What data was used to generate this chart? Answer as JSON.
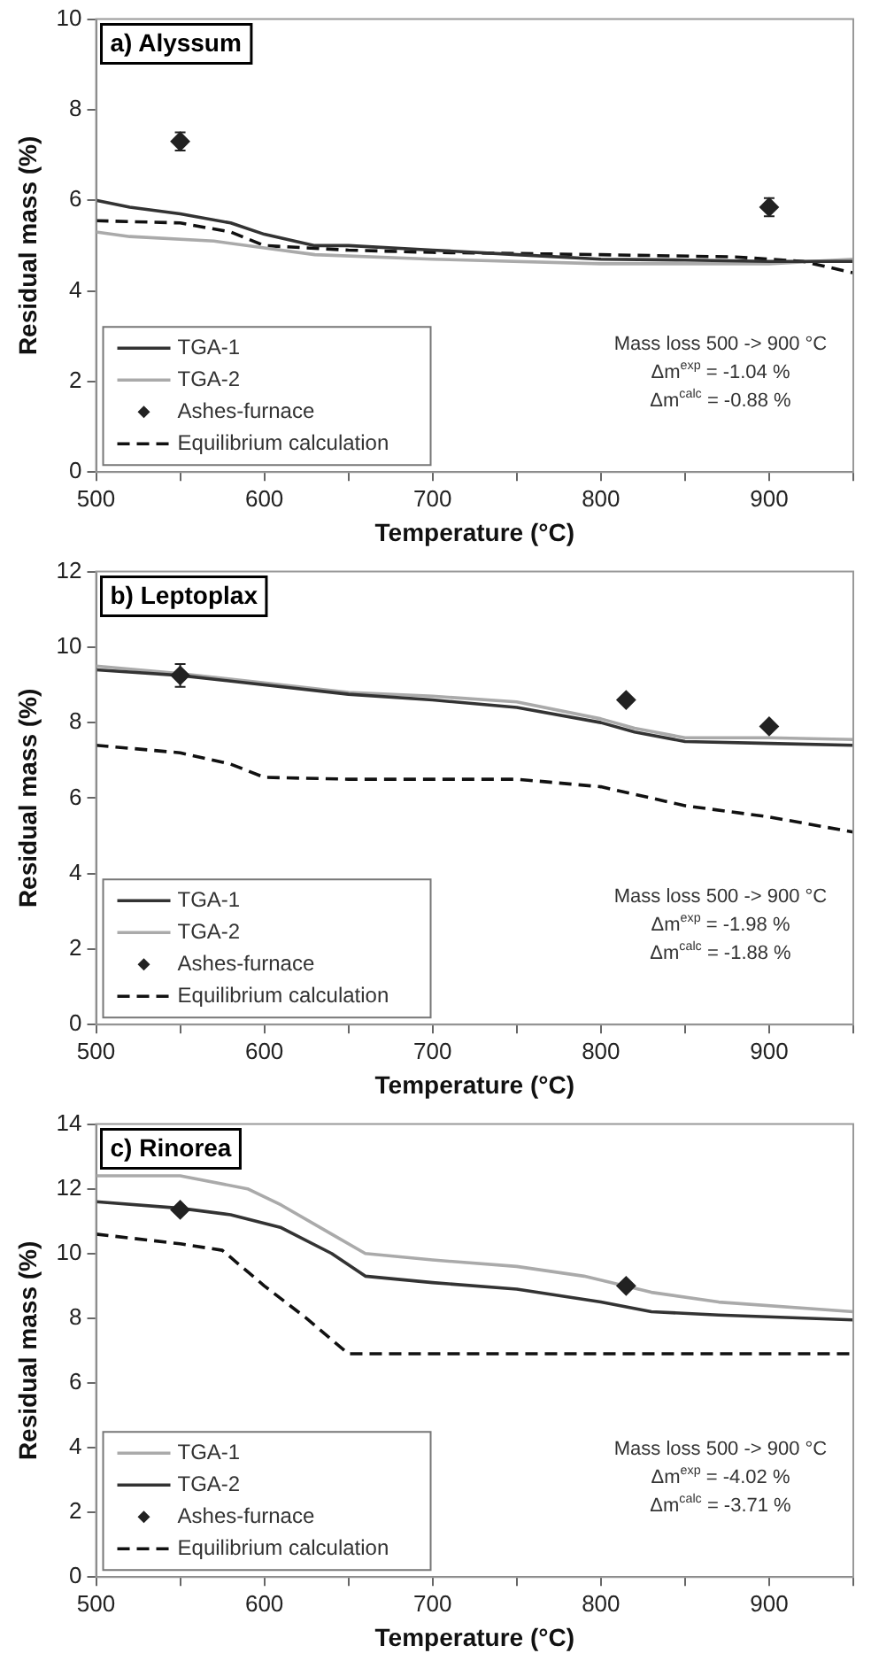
{
  "chart_data": [
    {
      "type": "line",
      "title": "a) Alyssum",
      "xlabel": "Temperature (°C)",
      "ylabel": "Residual mass (%)",
      "xlim": [
        500,
        950
      ],
      "xticks": [
        500,
        {
          "value": 550,
          "label": null
        },
        600,
        {
          "value": 650,
          "label": null
        },
        700,
        {
          "value": 750,
          "label": null
        },
        800,
        {
          "value": 850,
          "label": null
        },
        900,
        {
          "value": 950,
          "label": null
        }
      ],
      "ylim": [
        0,
        10
      ],
      "yticks": [
        0,
        2,
        4,
        6,
        8,
        10
      ],
      "grid": false,
      "legend": "bottom left",
      "annotations": [
        "Mass loss 500 -> 900 °C",
        "Δm$^{exp}$ = -1.04 %",
        "Δm$^{calc}$ = -0.88 %"
      ],
      "series": [
        {
          "name": "TGA-1",
          "type": "line",
          "color": "#333333",
          "line_style": "solid",
          "marker": "none",
          "x": [
            500,
            520,
            550,
            580,
            600,
            630,
            650,
            700,
            750,
            800,
            850,
            900,
            950
          ],
          "values": [
            6.0,
            5.85,
            5.7,
            5.5,
            5.25,
            5.0,
            5.0,
            4.9,
            4.8,
            4.7,
            4.68,
            4.65,
            4.65
          ]
        },
        {
          "name": "TGA-2",
          "type": "line",
          "color": "#aaaaaa",
          "line_style": "solid",
          "marker": "none",
          "x": [
            500,
            520,
            570,
            600,
            630,
            700,
            800,
            900,
            950
          ],
          "values": [
            5.3,
            5.2,
            5.1,
            4.95,
            4.8,
            4.7,
            4.6,
            4.6,
            4.7
          ]
        },
        {
          "name": "Ashes-furnace",
          "type": "scatter",
          "color": "#222222",
          "marker": "diamond",
          "x": [
            550,
            900
          ],
          "values": [
            7.3,
            5.85
          ],
          "errors": [
            0.2,
            0.2
          ]
        },
        {
          "name": "Equilibrium calculation",
          "type": "line",
          "color": "#111111",
          "line_style": "dashed",
          "marker": "none",
          "x": [
            500,
            550,
            580,
            600,
            650,
            700,
            800,
            880,
            920,
            950
          ],
          "values": [
            5.55,
            5.5,
            5.3,
            5.0,
            4.9,
            4.85,
            4.8,
            4.75,
            4.65,
            4.4
          ]
        }
      ]
    },
    {
      "type": "line",
      "title": "b) Leptoplax",
      "xlabel": "Temperature (°C)",
      "ylabel": "Residual mass (%)",
      "xlim": [
        500,
        950
      ],
      "xticks": [
        500,
        {
          "value": 550,
          "label": null
        },
        600,
        {
          "value": 650,
          "label": null
        },
        700,
        {
          "value": 750,
          "label": null
        },
        800,
        {
          "value": 850,
          "label": null
        },
        900,
        {
          "value": 950,
          "label": null
        }
      ],
      "ylim": [
        0,
        12
      ],
      "yticks": [
        0,
        2,
        4,
        6,
        8,
        10,
        12
      ],
      "grid": false,
      "legend": "bottom left",
      "annotations": [
        "Mass loss 500 -> 900 °C",
        "Δm$^{exp}$ = -1.98 %",
        "Δm$^{calc}$ = -1.88 %"
      ],
      "series": [
        {
          "name": "TGA-1",
          "type": "line",
          "color": "#333333",
          "line_style": "solid",
          "marker": "none",
          "x": [
            500,
            550,
            600,
            650,
            700,
            750,
            800,
            820,
            850,
            900,
            950
          ],
          "values": [
            9.4,
            9.25,
            9.0,
            8.75,
            8.6,
            8.4,
            8.0,
            7.75,
            7.5,
            7.45,
            7.4
          ]
        },
        {
          "name": "TGA-2",
          "type": "line",
          "color": "#aaaaaa",
          "line_style": "solid",
          "marker": "none",
          "x": [
            500,
            550,
            600,
            650,
            700,
            750,
            800,
            820,
            850,
            900,
            950
          ],
          "values": [
            9.5,
            9.3,
            9.05,
            8.8,
            8.7,
            8.55,
            8.1,
            7.85,
            7.6,
            7.6,
            7.55
          ]
        },
        {
          "name": "Ashes-furnace",
          "type": "scatter",
          "color": "#222222",
          "marker": "diamond",
          "x": [
            550,
            815,
            900
          ],
          "values": [
            9.25,
            8.6,
            7.9
          ],
          "errors": [
            0.3,
            null,
            null
          ]
        },
        {
          "name": "Equilibrium calculation",
          "type": "line",
          "color": "#111111",
          "line_style": "dashed",
          "marker": "none",
          "x": [
            500,
            550,
            580,
            600,
            650,
            750,
            800,
            850,
            900,
            950
          ],
          "values": [
            7.4,
            7.2,
            6.9,
            6.55,
            6.5,
            6.5,
            6.3,
            5.8,
            5.5,
            5.1
          ]
        }
      ]
    },
    {
      "type": "line",
      "title": "c) Rinorea",
      "xlabel": "Temperature (°C)",
      "ylabel": "Residual mass (%)",
      "xlim": [
        500,
        950
      ],
      "xticks": [
        500,
        {
          "value": 550,
          "label": null
        },
        600,
        {
          "value": 650,
          "label": null
        },
        700,
        {
          "value": 750,
          "label": null
        },
        800,
        {
          "value": 850,
          "label": null
        },
        900,
        {
          "value": 950,
          "label": null
        }
      ],
      "ylim": [
        0,
        14
      ],
      "yticks": [
        0,
        2,
        4,
        6,
        8,
        10,
        12,
        14
      ],
      "grid": false,
      "legend": "bottom left",
      "annotations": [
        "Mass loss 500 -> 900 °C",
        "Δm$^{exp}$ = -4.02 %",
        "Δm$^{calc}$ = -3.71 %"
      ],
      "series": [
        {
          "name": "TGA-1",
          "type": "line",
          "color": "#aaaaaa",
          "line_style": "solid",
          "marker": "none",
          "x": [
            500,
            550,
            590,
            610,
            640,
            660,
            700,
            750,
            790,
            830,
            870,
            950
          ],
          "values": [
            12.4,
            12.4,
            12.0,
            11.5,
            10.6,
            10.0,
            9.8,
            9.6,
            9.3,
            8.8,
            8.5,
            8.2
          ]
        },
        {
          "name": "TGA-2",
          "type": "line",
          "color": "#333333",
          "line_style": "solid",
          "marker": "none",
          "x": [
            500,
            550,
            580,
            610,
            640,
            660,
            700,
            750,
            800,
            830,
            870,
            950
          ],
          "values": [
            11.6,
            11.4,
            11.2,
            10.8,
            10.0,
            9.3,
            9.1,
            8.9,
            8.5,
            8.2,
            8.1,
            7.95
          ]
        },
        {
          "name": "Ashes-furnace",
          "type": "scatter",
          "color": "#222222",
          "marker": "diamond",
          "x": [
            550,
            815
          ],
          "values": [
            11.35,
            9.0
          ],
          "errors": [
            null,
            null
          ]
        },
        {
          "name": "Equilibrium calculation",
          "type": "line",
          "color": "#111111",
          "line_style": "dashed",
          "marker": "none",
          "x": [
            500,
            550,
            575,
            600,
            625,
            650,
            950
          ],
          "values": [
            10.6,
            10.3,
            10.1,
            9.0,
            8.0,
            6.9,
            6.9
          ]
        }
      ]
    }
  ]
}
